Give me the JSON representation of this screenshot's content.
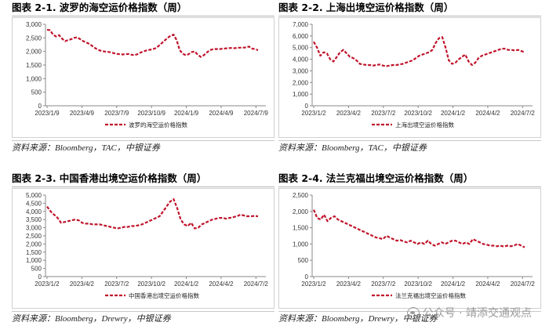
{
  "panels": [
    {
      "fig_num": "图表 2-1.",
      "fig_title": "波罗的海空运价格指数（周）",
      "source": "资料来源：Bloomberg，TAC，中银证券",
      "chart_data": {
        "type": "line",
        "title": "波罗的海空运价格指数（周）",
        "ylim": [
          0,
          3000
        ],
        "yticks": [
          0,
          500,
          1000,
          1500,
          2000,
          2500,
          3000
        ],
        "ytick_labels": [
          "0",
          "500",
          "1,000",
          "1,500",
          "2,000",
          "2,500",
          "3,000"
        ],
        "xticks": [
          "2023/1/9",
          "2023/4/9",
          "2023/7/9",
          "2023/10/9",
          "2024/1/9",
          "2024/4/9",
          "2024/7/9"
        ],
        "grid": false,
        "legend_position": "bottom",
        "series": [
          {
            "name": "波罗的海空运价格指数",
            "color": "#c0142b",
            "style": "dashed",
            "values": [
              2800,
              2780,
              2620,
              2550,
              2600,
              2470,
              2380,
              2420,
              2450,
              2500,
              2520,
              2450,
              2380,
              2330,
              2280,
              2200,
              2120,
              2060,
              2020,
              2000,
              1990,
              1970,
              1940,
              1910,
              1900,
              1890,
              1900,
              1910,
              1880,
              1860,
              1900,
              1960,
              2000,
              2040,
              2060,
              2080,
              2120,
              2200,
              2300,
              2400,
              2500,
              2580,
              2620,
              2420,
              2050,
              1920,
              1860,
              1900,
              1980,
              2000,
              1880,
              1800,
              1860,
              1960,
              2050,
              2080,
              2090,
              2080,
              2100,
              2110,
              2120,
              2130,
              2120,
              2130,
              2140,
              2140,
              2150,
              2180,
              2110,
              2080,
              2050
            ]
          }
        ]
      }
    },
    {
      "fig_num": "图表 2-2.",
      "fig_title": "上海出境空运价格指数（周）",
      "source": "资料来源：Bloomberg，TAC，中银证券",
      "chart_data": {
        "type": "line",
        "title": "上海出境空运价格指数（周）",
        "ylim": [
          0,
          7000
        ],
        "yticks": [
          0,
          1000,
          2000,
          3000,
          4000,
          5000,
          6000,
          7000
        ],
        "ytick_labels": [
          "0",
          "1,000",
          "2,000",
          "3,000",
          "4,000",
          "5,000",
          "6,000",
          "7,000"
        ],
        "xticks": [
          "2023/1/2",
          "2023/4/2",
          "2023/7/2",
          "2023/10/2",
          "2024/1/2",
          "2024/4/2",
          "2024/7/2"
        ],
        "grid": false,
        "legend_position": "bottom",
        "series": [
          {
            "name": "上海出境空运价格指数",
            "color": "#c0142b",
            "style": "dashed",
            "values": [
              5500,
              5000,
              4300,
              4600,
              4500,
              4000,
              3800,
              4200,
              4600,
              4800,
              4500,
              4200,
              4100,
              3900,
              3600,
              3550,
              3500,
              3500,
              3450,
              3500,
              3550,
              3450,
              3400,
              3450,
              3500,
              3500,
              3550,
              3600,
              3700,
              3800,
              3900,
              4100,
              4300,
              4400,
              4500,
              4600,
              4800,
              5400,
              5800,
              5900,
              5000,
              3900,
              3600,
              3700,
              4000,
              4200,
              4400,
              3800,
              3500,
              3700,
              4100,
              4300,
              4400,
              4500,
              4600,
              4700,
              4800,
              4900,
              4900,
              4800,
              4800,
              4750,
              4800,
              4700,
              4600
            ]
          }
        ]
      }
    },
    {
      "fig_num": "图表 2-3.",
      "fig_title": "中国香港出境空运价格指数（周）",
      "source": "资料来源：Bloomberg，Drewry，中银证券",
      "chart_data": {
        "type": "line",
        "title": "中国香港出境空运价格指数（周）",
        "ylim": [
          0,
          5000
        ],
        "yticks": [
          0,
          500,
          1000,
          1500,
          2000,
          2500,
          3000,
          3500,
          4000,
          4500,
          5000
        ],
        "ytick_labels": [
          "0",
          "500",
          "1,000",
          "1,500",
          "2,000",
          "2,500",
          "3,000",
          "3,500",
          "4,000",
          "4,500",
          "5,000"
        ],
        "xticks": [
          "2023/1/2",
          "2023/4/2",
          "2023/7/2",
          "2023/10/2",
          "2024/1/2",
          "2024/4/2",
          "2024/7/2"
        ],
        "grid": false,
        "legend_position": "bottom",
        "series": [
          {
            "name": "中国香港出境空运价格指数",
            "color": "#c0142b",
            "style": "dashed",
            "values": [
              4300,
              4000,
              3800,
              3600,
              3300,
              3350,
              3400,
              3450,
              3500,
              3450,
              3300,
              3250,
              3250,
              3200,
              3200,
              3200,
              3150,
              3100,
              3050,
              3000,
              2950,
              3000,
              3050,
              3050,
              3100,
              3100,
              3150,
              3200,
              3300,
              3400,
              3500,
              3600,
              3700,
              4000,
              4300,
              4600,
              4750,
              4200,
              3500,
              3200,
              3100,
              3300,
              2950,
              3000,
              3200,
              3300,
              3400,
              3500,
              3550,
              3600,
              3600,
              3550,
              3600,
              3650,
              3700,
              3800,
              3750,
              3700,
              3700,
              3720,
              3700
            ]
          }
        ]
      }
    },
    {
      "fig_num": "图表 2-4.",
      "fig_title": "法兰克福出境空运价格指数（周）",
      "source": "资料来源：Bloomberg，Drewry，中银证券",
      "chart_data": {
        "type": "line",
        "title": "法兰克福出境空运价格指数（周）",
        "ylim": [
          0,
          2500
        ],
        "yticks": [
          0,
          500,
          1000,
          1500,
          2000,
          2500
        ],
        "ytick_labels": [
          "0",
          "500",
          "1,000",
          "1,500",
          "2,000",
          "2,500"
        ],
        "xticks": [
          "2023/1/2",
          "2023/4/2",
          "2023/7/2",
          "2023/10/2",
          "2024/1/2",
          "2024/4/2",
          "2024/7/2"
        ],
        "grid": false,
        "legend_position": "bottom",
        "series": [
          {
            "name": "法兰克福出境空运价格指数",
            "color": "#c0142b",
            "style": "dashed",
            "values": [
              2050,
              1800,
              1750,
              1900,
              1700,
              1800,
              1850,
              1750,
              1700,
              1650,
              1600,
              1550,
              1500,
              1450,
              1400,
              1350,
              1300,
              1250,
              1200,
              1180,
              1150,
              1250,
              1200,
              1150,
              1100,
              1120,
              1080,
              1050,
              1100,
              1050,
              1000,
              1050,
              1000,
              1100,
              1000,
              950,
              1000,
              1050,
              1000,
              1050,
              1100,
              1100,
              1050,
              1000,
              1050,
              1000,
              1150,
              1100,
              1050,
              1000,
              980,
              950,
              950,
              930,
              950,
              920,
              950,
              930,
              960,
              1000,
              950,
              900
            ]
          }
        ]
      }
    }
  ],
  "watermark": "公众号 · 靖添交通观点"
}
